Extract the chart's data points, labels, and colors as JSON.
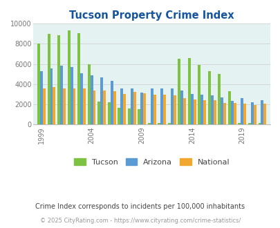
{
  "title": "Tucson Property Crime Index",
  "subtitle": "Crime Index corresponds to incidents per 100,000 inhabitants",
  "footer": "© 2025 CityRating.com - https://www.cityrating.com/crime-statistics/",
  "years": [
    1999,
    2000,
    2001,
    2002,
    2003,
    2004,
    2005,
    2006,
    2007,
    2008,
    2009,
    2010,
    2011,
    2012,
    2013,
    2014,
    2015,
    2016,
    2017,
    2018,
    2019,
    2020,
    2021
  ],
  "tucson": [
    8050,
    9000,
    8850,
    9300,
    9050,
    6000,
    2300,
    2200,
    1650,
    1600,
    1500,
    200,
    200,
    200,
    6500,
    6600,
    5900,
    5300,
    5000,
    3300,
    200,
    200,
    200
  ],
  "arizona": [
    5300,
    5550,
    5850,
    5700,
    5100,
    4850,
    4650,
    4350,
    3550,
    3550,
    3200,
    3600,
    3550,
    3550,
    3400,
    3050,
    3000,
    2900,
    2700,
    2350,
    2650,
    2200,
    2450
  ],
  "national": [
    3600,
    3700,
    3600,
    3600,
    3550,
    3400,
    3350,
    3300,
    3050,
    3250,
    3100,
    2950,
    2950,
    2900,
    2650,
    2500,
    2450,
    2400,
    2150,
    2150,
    2050,
    1950,
    2100
  ],
  "tucson_color": "#7dc242",
  "arizona_color": "#5b9bd5",
  "national_color": "#f0a830",
  "ylim": [
    0,
    10000
  ],
  "yticks": [
    0,
    2000,
    4000,
    6000,
    8000,
    10000
  ],
  "xtick_labels": [
    "1999",
    "2004",
    "2009",
    "2014",
    "2019"
  ],
  "xtick_positions": [
    1999,
    2004,
    2009,
    2014,
    2019
  ],
  "background_color": "#e5f2f2",
  "title_color": "#1555a0",
  "subtitle_color": "#444444",
  "footer_color": "#999999",
  "bar_width": 0.27,
  "legend_labels": [
    "Tucson",
    "Arizona",
    "National"
  ]
}
